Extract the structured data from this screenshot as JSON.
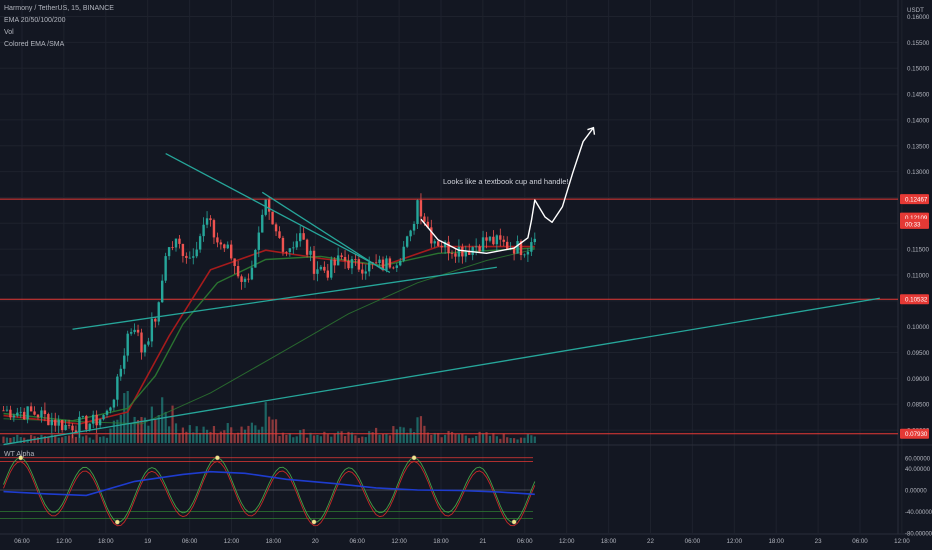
{
  "header": {
    "symbol_line": "Harmony / TetherUS, 15, BINANCE",
    "indicator_1": "EMA 20/50/100/200",
    "indicator_2": "Vol",
    "indicator_3": "Colored EMA /SMA"
  },
  "currency_label": "USDT",
  "oscillator": {
    "title": "WT Alpha"
  },
  "annotation": "Looks like a textbook cup and handle!",
  "colors": {
    "background": "#131722",
    "grid": "#1e222d",
    "up": "#26a69a",
    "down": "#ef5350",
    "trendline": "#26a69a",
    "hline": "#e53935",
    "ema_green": "#2e7d32",
    "ema_red": "#b71c1c",
    "wt_blue": "#1e3ccf",
    "axis_text": "#b2b5be"
  },
  "chart_data": {
    "type": "candlestick",
    "price_axis": {
      "ylim": [
        0.0775,
        0.1632
      ],
      "ticks": [
        "0.16000",
        "0.15500",
        "0.15000",
        "0.14500",
        "0.14000",
        "0.13500",
        "0.13000",
        "0.12500",
        "0.12000",
        "0.11500",
        "0.11000",
        "0.10500",
        "0.10000",
        "0.09500",
        "0.09000",
        "0.08500",
        "0.08000"
      ],
      "tick_values": [
        0.16,
        0.155,
        0.15,
        0.145,
        0.14,
        0.135,
        0.13,
        0.125,
        0.12,
        0.115,
        0.11,
        0.105,
        0.1,
        0.095,
        0.09,
        0.085,
        0.08
      ],
      "labels": [
        {
          "text": "0.12467",
          "value": 0.12467,
          "color": "#e53935"
        },
        {
          "text": "0.12109",
          "value": 0.12109,
          "color": "#e53935"
        },
        {
          "text": "00:33",
          "value": 0.1199,
          "color": "#e53935"
        },
        {
          "text": "0.10532",
          "value": 0.10532,
          "color": "#e53935"
        },
        {
          "text": "0.07930",
          "value": 0.0793,
          "color": "#e53935"
        }
      ]
    },
    "time_axis": {
      "ticks": [
        "06:00",
        "12:00",
        "18:00",
        "19",
        "06:00",
        "12:00",
        "18:00",
        "20",
        "06:00",
        "12:00",
        "18:00",
        "21",
        "06:00",
        "12:00",
        "18:00",
        "22",
        "06:00",
        "12:00",
        "18:00",
        "23",
        "06:00",
        "12:00"
      ]
    },
    "horizontal_lines": [
      0.12467,
      0.10532,
      0.0793
    ],
    "trendlines": [
      {
        "from": {
          "bar": 0,
          "price": 0.0772
        },
        "to": {
          "bar": 254,
          "price": 0.1055
        }
      },
      {
        "from": {
          "bar": 20,
          "price": 0.0995
        },
        "to": {
          "bar": 143,
          "price": 0.1115
        }
      },
      {
        "from": {
          "bar": 47,
          "price": 0.1335
        },
        "to": {
          "bar": 112,
          "price": 0.1105
        }
      },
      {
        "from": {
          "bar": 75,
          "price": 0.126
        },
        "to": {
          "bar": 110,
          "price": 0.111
        }
      }
    ],
    "price_path": [
      [
        0,
        0.0838
      ],
      [
        10,
        0.0832
      ],
      [
        18,
        0.0808
      ],
      [
        26,
        0.0815
      ],
      [
        30,
        0.0832
      ],
      [
        33,
        0.0888
      ],
      [
        36,
        0.0985
      ],
      [
        38,
        0.1005
      ],
      [
        40,
        0.0955
      ],
      [
        42,
        0.0985
      ],
      [
        45,
        0.1035
      ],
      [
        47,
        0.1145
      ],
      [
        50,
        0.1162
      ],
      [
        54,
        0.1135
      ],
      [
        57,
        0.1178
      ],
      [
        59,
        0.1205
      ],
      [
        62,
        0.1165
      ],
      [
        65,
        0.1148
      ],
      [
        68,
        0.1105
      ],
      [
        70,
        0.1085
      ],
      [
        73,
        0.114
      ],
      [
        76,
        0.1232
      ],
      [
        78,
        0.119
      ],
      [
        82,
        0.115
      ],
      [
        86,
        0.1175
      ],
      [
        90,
        0.1118
      ],
      [
        94,
        0.1108
      ],
      [
        98,
        0.1132
      ],
      [
        102,
        0.1118
      ],
      [
        106,
        0.1118
      ],
      [
        110,
        0.1118
      ],
      [
        114,
        0.1132
      ],
      [
        118,
        0.1175
      ],
      [
        120,
        0.1245
      ],
      [
        124,
        0.1175
      ],
      [
        128,
        0.1155
      ],
      [
        134,
        0.1148
      ],
      [
        140,
        0.1168
      ],
      [
        146,
        0.1158
      ],
      [
        150,
        0.1152
      ],
      [
        152,
        0.1155
      ],
      [
        154,
        0.1185
      ]
    ],
    "ema_green_path": [
      [
        0,
        0.0832
      ],
      [
        20,
        0.0818
      ],
      [
        36,
        0.0842
      ],
      [
        44,
        0.0905
      ],
      [
        52,
        0.1005
      ],
      [
        62,
        0.1085
      ],
      [
        76,
        0.113
      ],
      [
        92,
        0.1136
      ],
      [
        110,
        0.1118
      ],
      [
        126,
        0.1142
      ],
      [
        154,
        0.1152
      ]
    ],
    "ema_red_path": [
      [
        0,
        0.0828
      ],
      [
        22,
        0.0812
      ],
      [
        36,
        0.0835
      ],
      [
        48,
        0.0982
      ],
      [
        60,
        0.111
      ],
      [
        76,
        0.1148
      ],
      [
        92,
        0.1132
      ],
      [
        110,
        0.1118
      ],
      [
        126,
        0.1155
      ],
      [
        154,
        0.1155
      ]
    ],
    "slow_ma_path": [
      [
        0,
        0.0822
      ],
      [
        40,
        0.0812
      ],
      [
        60,
        0.0872
      ],
      [
        80,
        0.0948
      ],
      [
        100,
        0.1025
      ],
      [
        120,
        0.1085
      ],
      [
        140,
        0.1128
      ],
      [
        154,
        0.115
      ]
    ],
    "cup_path": [
      [
        121,
        0.1208
      ],
      [
        126,
        0.1168
      ],
      [
        132,
        0.1148
      ],
      [
        140,
        0.1142
      ],
      [
        148,
        0.1152
      ],
      [
        152,
        0.1172
      ],
      [
        153,
        0.1205
      ],
      [
        154,
        0.1245
      ],
      [
        157,
        0.1212
      ],
      [
        159,
        0.1202
      ],
      [
        162,
        0.1232
      ],
      [
        165,
        0.1298
      ],
      [
        168,
        0.1358
      ],
      [
        171,
        0.1385
      ]
    ],
    "volume_path": [
      [
        0,
        3
      ],
      [
        30,
        3
      ],
      [
        33,
        12
      ],
      [
        36,
        22
      ],
      [
        40,
        9
      ],
      [
        46,
        23
      ],
      [
        50,
        10
      ],
      [
        58,
        6
      ],
      [
        68,
        8
      ],
      [
        73,
        11
      ],
      [
        76,
        17
      ],
      [
        80,
        6
      ],
      [
        100,
        4
      ],
      [
        118,
        7
      ],
      [
        120,
        11
      ],
      [
        124,
        5
      ],
      [
        154,
        3
      ]
    ],
    "oscillator": {
      "ylim": [
        -80,
        80
      ],
      "ticks": [
        "60.00000",
        "40.00000",
        "0.00000",
        "-40.00000",
        "-80.00000"
      ],
      "tick_values": [
        60,
        40,
        0,
        -40,
        -80
      ],
      "levels": [
        60,
        53,
        -40,
        -53
      ],
      "wt_blue_path": [
        [
          0,
          -3
        ],
        [
          12,
          -7
        ],
        [
          24,
          -10
        ],
        [
          38,
          16
        ],
        [
          52,
          29
        ],
        [
          60,
          34
        ],
        [
          70,
          31
        ],
        [
          82,
          20
        ],
        [
          96,
          12
        ],
        [
          108,
          4
        ],
        [
          120,
          0
        ],
        [
          132,
          -1
        ],
        [
          144,
          -4
        ],
        [
          154,
          -8
        ]
      ]
    }
  }
}
